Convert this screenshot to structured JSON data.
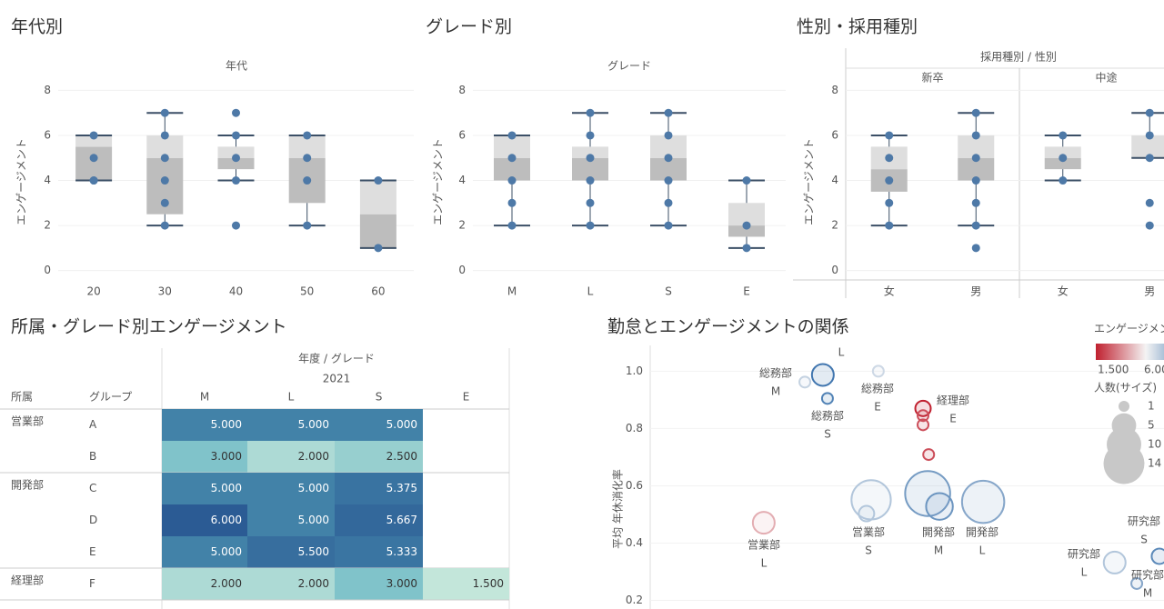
{
  "chart_data": [
    {
      "type": "box",
      "title": "年代別",
      "subtitle": "年代",
      "y_label": "エンゲージメント",
      "categories": [
        "20",
        "30",
        "40",
        "50",
        "60"
      ],
      "ylim": [
        -0.5,
        8.3
      ],
      "yticks": [
        0,
        2,
        4,
        6,
        8
      ],
      "box_low_color": "#bdbdbd",
      "box_high_color": "#dedede",
      "line_color": "#3b4f66",
      "point_color": "#4e79a7",
      "boxes": [
        {
          "whisker_low": 4,
          "q1": 4,
          "median": 5.5,
          "q3": 6,
          "whisker_high": 6,
          "points": [
            6,
            5,
            4,
            4
          ]
        },
        {
          "whisker_low": 2,
          "q1": 2.5,
          "median": 5,
          "q3": 6,
          "whisker_high": 7,
          "points": [
            7,
            6,
            5,
            4,
            3,
            2
          ]
        },
        {
          "whisker_low": 4,
          "q1": 4.5,
          "median": 5,
          "q3": 5.5,
          "whisker_high": 6,
          "points": [
            7,
            6,
            5,
            4,
            2
          ]
        },
        {
          "whisker_low": 2,
          "q1": 3,
          "median": 5,
          "q3": 6,
          "whisker_high": 6,
          "points": [
            6,
            5,
            4,
            2
          ]
        },
        {
          "whisker_low": 1,
          "q1": 1,
          "median": 2.5,
          "q3": 4,
          "whisker_high": 4,
          "points": [
            4,
            1
          ]
        }
      ]
    },
    {
      "type": "box",
      "title": "グレード別",
      "subtitle": "グレード",
      "y_label": "エンゲージメント",
      "categories": [
        "M",
        "L",
        "S",
        "E"
      ],
      "ylim": [
        -0.5,
        8.3
      ],
      "yticks": [
        0,
        2,
        4,
        6,
        8
      ],
      "box_low_color": "#bdbdbd",
      "box_high_color": "#dedede",
      "line_color": "#3b4f66",
      "point_color": "#4e79a7",
      "boxes": [
        {
          "whisker_low": 2,
          "q1": 4,
          "median": 5,
          "q3": 6,
          "whisker_high": 6,
          "points": [
            6,
            5,
            4,
            3,
            2
          ]
        },
        {
          "whisker_low": 2,
          "q1": 4,
          "median": 5,
          "q3": 5.5,
          "whisker_high": 7,
          "points": [
            7,
            6,
            5,
            4,
            3,
            2
          ]
        },
        {
          "whisker_low": 2,
          "q1": 4,
          "median": 5,
          "q3": 6,
          "whisker_high": 7,
          "points": [
            7,
            6,
            5,
            4,
            3,
            2
          ]
        },
        {
          "whisker_low": 1,
          "q1": 1.5,
          "median": 2,
          "q3": 3,
          "whisker_high": 4,
          "points": [
            4,
            2,
            1
          ]
        }
      ]
    },
    {
      "type": "box",
      "title": "性別・採用種別",
      "group_header": "採用種別 / 性別",
      "groups": [
        "新卒",
        "中途"
      ],
      "y_label": "エンゲージメント",
      "categories": [
        "女",
        "男",
        "女",
        "男"
      ],
      "ylim": [
        -0.5,
        8.3
      ],
      "yticks": [
        0,
        2,
        4,
        6,
        8
      ],
      "box_low_color": "#bdbdbd",
      "box_high_color": "#dedede",
      "line_color": "#3b4f66",
      "point_color": "#4e79a7",
      "boxes": [
        {
          "whisker_low": 2,
          "q1": 3.5,
          "median": 4.5,
          "q3": 5.5,
          "whisker_high": 6,
          "points": [
            6,
            5,
            4,
            3,
            2
          ]
        },
        {
          "whisker_low": 2,
          "q1": 4,
          "median": 5,
          "q3": 6,
          "whisker_high": 7,
          "points": [
            7,
            6,
            5,
            4,
            3,
            2,
            1
          ]
        },
        {
          "whisker_low": 4,
          "q1": 4.5,
          "median": 5,
          "q3": 5.5,
          "whisker_high": 6,
          "points": [
            6,
            5,
            4
          ]
        },
        {
          "whisker_low": 5,
          "q1": 5,
          "median": 5,
          "q3": 6,
          "whisker_high": 7,
          "points": [
            7,
            6,
            5,
            3,
            2
          ]
        }
      ]
    },
    {
      "type": "table",
      "title": "所属・グレード別エンゲージメント",
      "header": "年度 / グレード",
      "year": "2021",
      "columns": [
        "所属",
        "グループ",
        "M",
        "L",
        "S",
        "E"
      ],
      "colors": [
        "#c3e6da",
        "#5fb2c2",
        "#2b5b94"
      ],
      "color_range": [
        1.5,
        6
      ],
      "rows": [
        [
          "営業部",
          "A",
          "5.000",
          "5.000",
          "5.000",
          null
        ],
        [
          null,
          "B",
          "3.000",
          "2.000",
          "2.500",
          null
        ],
        [
          "開発部",
          "C",
          "5.000",
          "5.000",
          "5.375",
          null
        ],
        [
          null,
          "D",
          "6.000",
          "5.000",
          "5.667",
          null
        ],
        [
          null,
          "E",
          "5.000",
          "5.500",
          "5.333",
          null
        ],
        [
          "経理部",
          "F",
          "2.000",
          "2.000",
          "3.000",
          "1.500"
        ]
      ]
    },
    {
      "type": "scatter",
      "title": "勤怠とエンゲージメントの関係",
      "y_label": "平均 年休消化率",
      "xlim": [
        0,
        100
      ],
      "ylim": [
        0.17,
        1.09
      ],
      "yticks": [
        {
          "value": 0.2,
          "label": "0.2"
        },
        {
          "value": 0.4,
          "label": "0.4"
        },
        {
          "value": 0.6,
          "label": "0.6"
        },
        {
          "value": 0.8,
          "label": "0.8"
        },
        {
          "value": 1.0,
          "label": "1.0"
        }
      ],
      "color_legend": {
        "title": "エンゲージメント",
        "min": {
          "value": 1.5,
          "label": "1.500"
        },
        "max": {
          "value": 6,
          "label": "6.000"
        },
        "colors": [
          "#c0202f",
          "#f4f4f4",
          "#2f6aa8"
        ]
      },
      "size_legend": {
        "title": "人数(サイズ)",
        "values": [
          1,
          5,
          10,
          14
        ],
        "color": "#c8c8c8"
      },
      "points": [
        {
          "x": 30.1,
          "y": 0.962,
          "size": 1,
          "engagement": 4.3,
          "label": [
            "総務部",
            "M"
          ]
        },
        {
          "x": 33.6,
          "y": 0.987,
          "size": 4,
          "engagement": 5.8,
          "label": [
            "L"
          ]
        },
        {
          "x": 34.5,
          "y": 0.905,
          "size": 1,
          "engagement": 5.6,
          "label": [
            "総務部",
            "S"
          ]
        },
        {
          "x": 44.4,
          "y": 1.0,
          "size": 1,
          "engagement": 4.2,
          "label": [
            "総務部",
            "E"
          ]
        },
        {
          "x": 53.1,
          "y": 0.87,
          "size": 2,
          "engagement": 1.5,
          "label": [
            "経理部",
            "E"
          ]
        },
        {
          "x": 53.1,
          "y": 0.845,
          "size": 1,
          "engagement": 2.0,
          "label": null
        },
        {
          "x": 53.1,
          "y": 0.813,
          "size": 1,
          "engagement": 2.0,
          "label": null
        },
        {
          "x": 54.2,
          "y": 0.709,
          "size": 1,
          "engagement": 2.0,
          "label": null
        },
        {
          "x": 43.0,
          "y": 0.551,
          "size": 13,
          "engagement": 4.5,
          "label": [
            "営業部",
            "S"
          ]
        },
        {
          "x": 42.1,
          "y": 0.503,
          "size": 2,
          "engagement": 4.5,
          "label": null
        },
        {
          "x": 54.0,
          "y": 0.573,
          "size": 17,
          "engagement": 5.2,
          "label": [
            "開発部",
            "M"
          ]
        },
        {
          "x": 56.3,
          "y": 0.528,
          "size": 6,
          "engagement": 5.3,
          "label": null
        },
        {
          "x": 64.8,
          "y": 0.544,
          "size": 15,
          "engagement": 5.0,
          "label": [
            "開発部",
            "L"
          ]
        },
        {
          "x": 22.1,
          "y": 0.471,
          "size": 4,
          "engagement": 3.0,
          "label": [
            "営業部",
            "L"
          ]
        },
        {
          "x": 90.4,
          "y": 0.332,
          "size": 4,
          "engagement": 4.5,
          "label": [
            "研究部",
            "L"
          ]
        },
        {
          "x": 94.7,
          "y": 0.259,
          "size": 1,
          "engagement": 5.0,
          "label": [
            "研究部",
            "M"
          ]
        },
        {
          "x": 99.1,
          "y": 0.354,
          "size": 2,
          "engagement": 5.5,
          "label": [
            "研究部",
            "S"
          ]
        }
      ]
    }
  ]
}
